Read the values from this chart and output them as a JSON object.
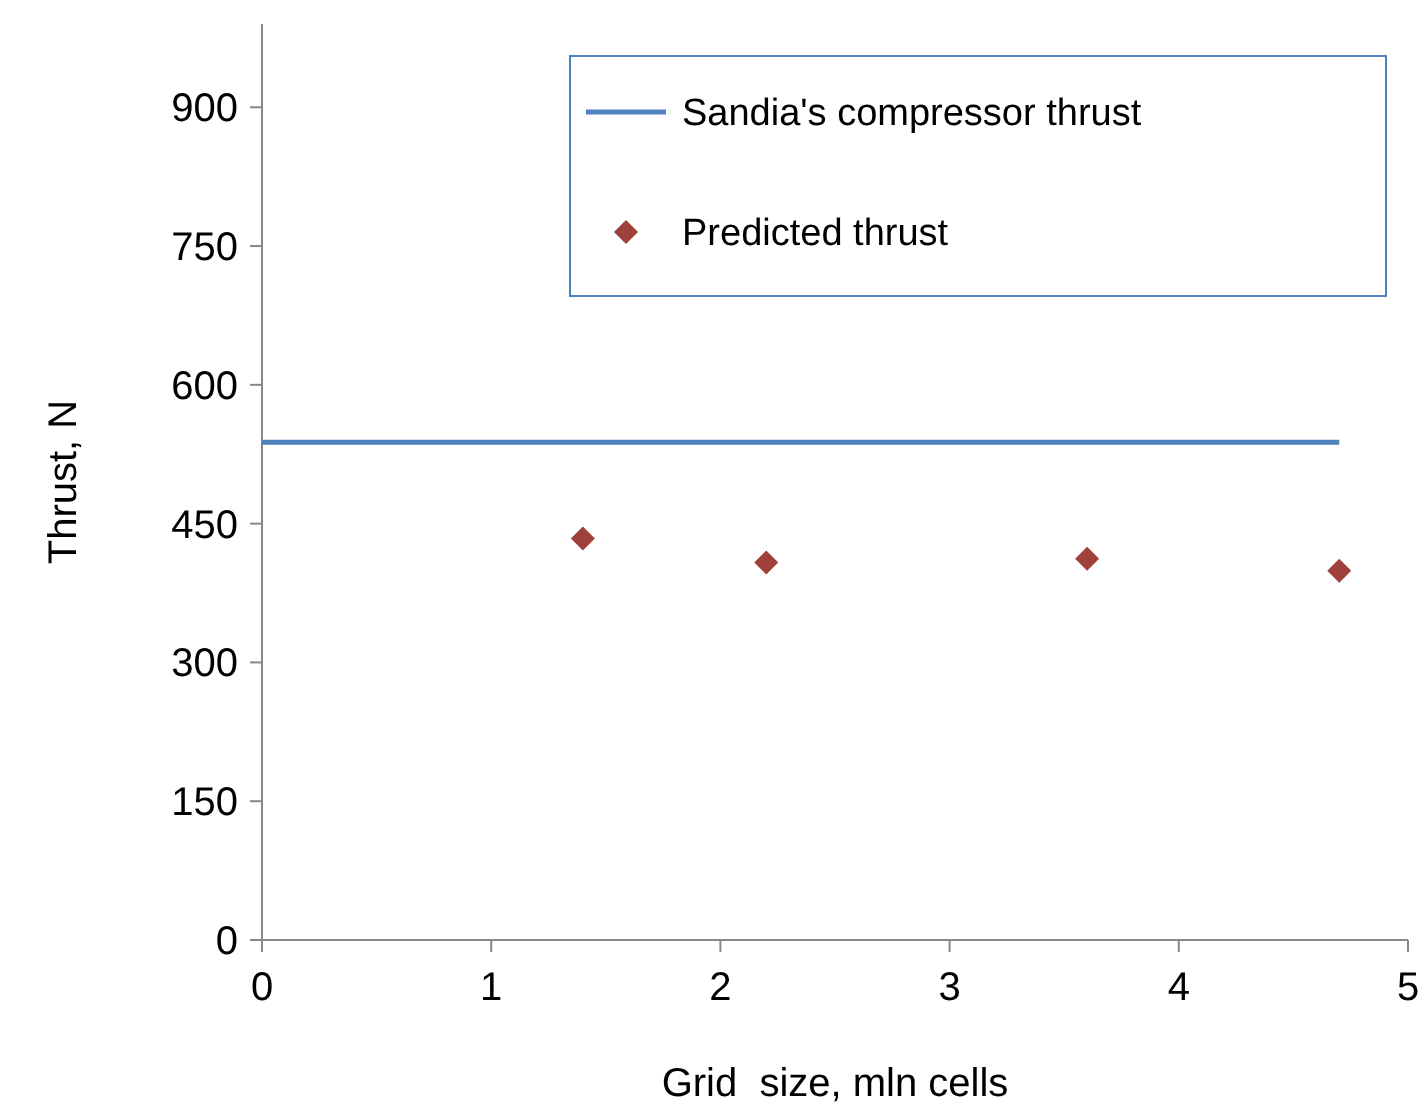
{
  "chart_data": {
    "type": "scatter",
    "xlabel": "Grid  size, mln cells",
    "ylabel": "Thrust, N",
    "xlim": [
      0,
      5
    ],
    "xticks": [
      0,
      1,
      2,
      3,
      4,
      5
    ],
    "ylim": [
      0,
      990
    ],
    "yticks": [
      0,
      150,
      300,
      450,
      600,
      750,
      900
    ],
    "series": [
      {
        "name": "Sandia's compressor thrust",
        "type": "line",
        "color": "#4f81bd",
        "x": [
          0,
          4.7
        ],
        "values": [
          538,
          538
        ],
        "marker": "none",
        "line_style": "solid"
      },
      {
        "name": "Predicted thrust",
        "color": "#a0403c",
        "x": [
          1.4,
          2.2,
          3.6,
          4.7
        ],
        "values": [
          434,
          408,
          412,
          399
        ],
        "marker": "diamond"
      }
    ],
    "legend": "top right",
    "grid": false
  }
}
